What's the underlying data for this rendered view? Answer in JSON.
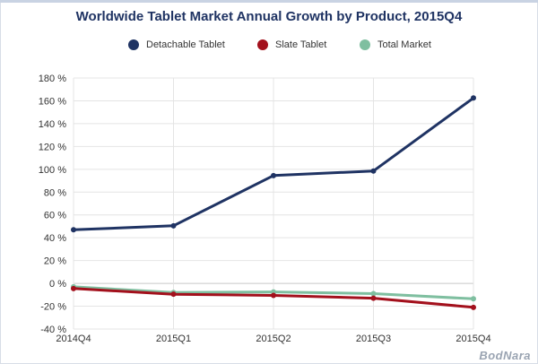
{
  "header": {
    "title": "Worldwide Tablet Market Annual Growth by Product, 2015Q4"
  },
  "watermark": "BodNara",
  "chart_data": {
    "type": "line",
    "title": "Worldwide Tablet Market Annual Growth by Product, 2015Q4",
    "xlabel": "",
    "ylabel": "",
    "categories": [
      "2014Q4",
      "2015Q1",
      "2015Q2",
      "2015Q3",
      "2015Q4"
    ],
    "ylim": [
      -40,
      180
    ],
    "yticks": [
      -40,
      -20,
      0,
      20,
      40,
      60,
      80,
      100,
      120,
      140,
      160,
      180
    ],
    "ytick_labels": [
      "-40 %",
      "-20 %",
      "0 %",
      "20 %",
      "40 %",
      "60 %",
      "80 %",
      "100 %",
      "120 %",
      "140 %",
      "160 %",
      "180 %"
    ],
    "grid": true,
    "legend": "top-center",
    "series": [
      {
        "name": "Detachable Tablet",
        "color": "#1f3363",
        "values": [
          47,
          50.5,
          94.5,
          98.5,
          162.5
        ]
      },
      {
        "name": "Slate Tablet",
        "color": "#a3101c",
        "values": [
          -4.5,
          -9.5,
          -10.5,
          -13,
          -21
        ]
      },
      {
        "name": "Total Market",
        "color": "#7fbfa0",
        "values": [
          -3,
          -8,
          -7.5,
          -9,
          -13.5
        ]
      }
    ]
  }
}
